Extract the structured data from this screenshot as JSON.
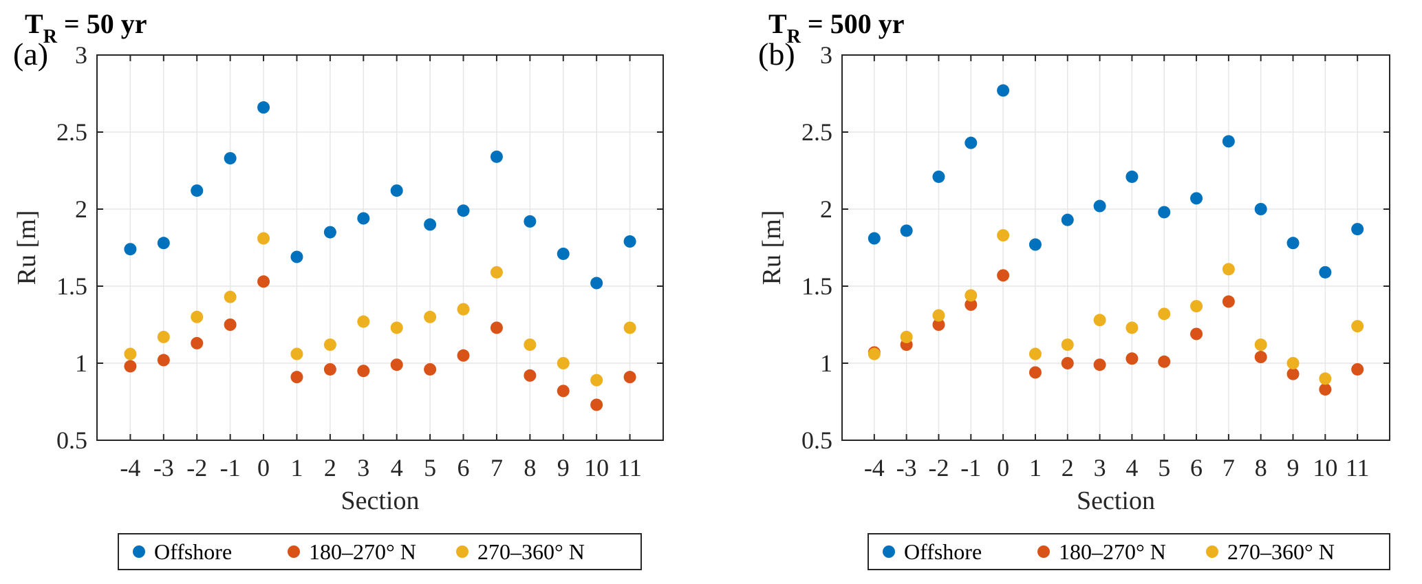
{
  "chart_data": [
    {
      "type": "scatter",
      "panel_label": "(a)",
      "title_main": "T",
      "title_sub": "R",
      "title_rest": "= 50  yr",
      "xlabel": "Section",
      "ylabel": "Ru [m]",
      "ylim": [
        0.5,
        3
      ],
      "yticks": [
        0.5,
        1,
        1.5,
        2,
        2.5,
        3
      ],
      "ytick_labels": [
        "0.5",
        "1",
        "1.5",
        "2",
        "2.5",
        "3"
      ],
      "categories": [
        "-4",
        "-3",
        "-2",
        "-1",
        "0",
        "1",
        "2",
        "3",
        "4",
        "5",
        "6",
        "7",
        "8",
        "9",
        "10",
        "11"
      ],
      "grid": true,
      "legend_position": "bottom",
      "series": [
        {
          "name": "Offshore",
          "color": "#0072BD",
          "values": [
            1.74,
            1.78,
            2.12,
            2.33,
            2.66,
            1.69,
            1.85,
            1.94,
            2.12,
            1.9,
            1.99,
            2.34,
            1.92,
            1.71,
            1.52,
            1.79
          ]
        },
        {
          "name": "180–270° N",
          "color": "#D95319",
          "values": [
            0.98,
            1.02,
            1.13,
            1.25,
            1.53,
            0.91,
            0.96,
            0.95,
            0.99,
            0.96,
            1.05,
            1.23,
            0.92,
            0.82,
            0.73,
            0.91
          ]
        },
        {
          "name": "270–360° N",
          "color": "#EDB120",
          "values": [
            1.06,
            1.17,
            1.3,
            1.43,
            1.81,
            1.06,
            1.12,
            1.27,
            1.23,
            1.3,
            1.35,
            1.59,
            1.12,
            1.0,
            0.89,
            1.23
          ]
        }
      ]
    },
    {
      "type": "scatter",
      "panel_label": "(b)",
      "title_main": "T",
      "title_sub": "R",
      "title_rest": "= 500  yr",
      "xlabel": "Section",
      "ylabel": "Ru [m]",
      "ylim": [
        0.5,
        3
      ],
      "yticks": [
        0.5,
        1,
        1.5,
        2,
        2.5,
        3
      ],
      "ytick_labels": [
        "0.5",
        "1",
        "1.5",
        "2",
        "2.5",
        "3"
      ],
      "categories": [
        "-4",
        "-3",
        "-2",
        "-1",
        "0",
        "1",
        "2",
        "3",
        "4",
        "5",
        "6",
        "7",
        "8",
        "9",
        "10",
        "11"
      ],
      "grid": true,
      "legend_position": "bottom",
      "series": [
        {
          "name": "Offshore",
          "color": "#0072BD",
          "values": [
            1.81,
            1.86,
            2.21,
            2.43,
            2.77,
            1.77,
            1.93,
            2.02,
            2.21,
            1.98,
            2.07,
            2.44,
            2.0,
            1.78,
            1.59,
            1.87
          ]
        },
        {
          "name": "180–270° N",
          "color": "#D95319",
          "values": [
            1.07,
            1.12,
            1.25,
            1.38,
            1.57,
            0.94,
            1.0,
            0.99,
            1.03,
            1.01,
            1.19,
            1.4,
            1.04,
            0.93,
            0.83,
            0.96
          ]
        },
        {
          "name": "270–360° N",
          "color": "#EDB120",
          "values": [
            1.06,
            1.17,
            1.31,
            1.44,
            1.83,
            1.06,
            1.12,
            1.28,
            1.23,
            1.32,
            1.37,
            1.61,
            1.12,
            1.0,
            0.9,
            1.24
          ]
        }
      ]
    }
  ]
}
